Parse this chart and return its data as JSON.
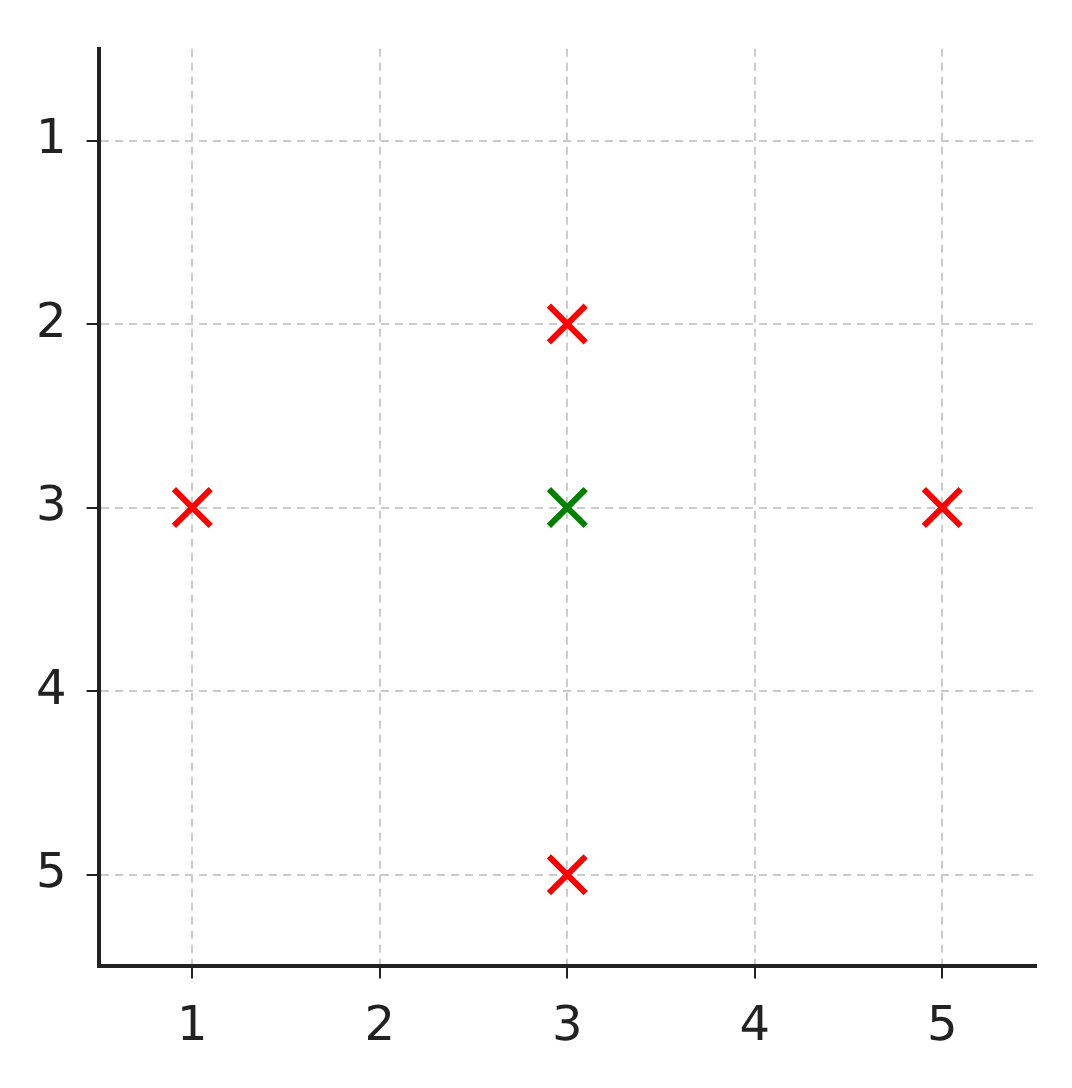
{
  "chart_data": {
    "type": "scatter",
    "xlim": [
      0.5,
      5.5
    ],
    "ylim": [
      5.5,
      0.5
    ],
    "xticks": [
      1,
      2,
      3,
      4,
      5
    ],
    "yticks": [
      1,
      2,
      3,
      4,
      5
    ],
    "grid": true,
    "marker": "cross",
    "legend": false,
    "series": [
      {
        "color": "#ff0000",
        "x": [
          3,
          1,
          5,
          3
        ],
        "values": [
          2,
          3,
          3,
          5
        ]
      },
      {
        "color": "#008000",
        "x": [
          3
        ],
        "values": [
          3
        ]
      }
    ]
  }
}
